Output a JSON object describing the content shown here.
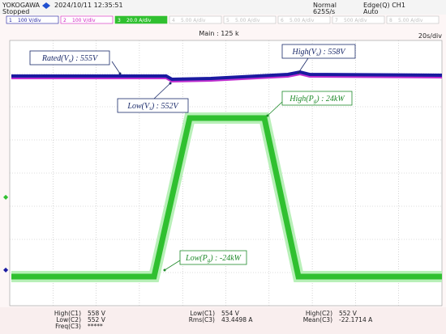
{
  "header": {
    "brand": "YOKOGAWA",
    "datetime": "2024/10/11 12:35:51",
    "status": "Stopped",
    "mode": "Normal",
    "rate": "625S/s",
    "trigger": "Edge(Q) CH1",
    "trigger_mode": "Auto"
  },
  "channels": [
    {
      "num": "1",
      "scale": "100 V/div",
      "color": "#1a1aa0"
    },
    {
      "num": "2",
      "scale": "100 V/div",
      "color": "#d020c0"
    },
    {
      "num": "3",
      "scale": "20.0 A/div",
      "color": "#30c030"
    },
    {
      "num": "4",
      "scale": "5.00 A/div",
      "color": "#c0c0c0"
    },
    {
      "num": "5",
      "scale": "5.00 A/div",
      "color": "#c0c0c0"
    },
    {
      "num": "6",
      "scale": "5.00 A/div",
      "color": "#c0c0c0"
    },
    {
      "num": "7",
      "scale": "500 A/div",
      "color": "#c0c0c0"
    },
    {
      "num": "8",
      "scale": "5.00 A/div",
      "color": "#c0c0c0"
    }
  ],
  "main": "Main : 125 k",
  "timebase": "20s/div",
  "annotations": [
    {
      "pre": "Rated(V",
      "sub": "s",
      "post": ") : 555V"
    },
    {
      "pre": "High(V",
      "sub": "s",
      "post": ") : 558V"
    },
    {
      "pre": "Low(V",
      "sub": "s",
      "post": ") : 552V"
    },
    {
      "pre": "High(P",
      "sub": "g",
      "post": ") : 24kW"
    },
    {
      "pre": "Low(P",
      "sub": "g",
      "post": ") : -24kW"
    }
  ],
  "measurements": [
    [
      "High(C1)",
      "558 V"
    ],
    [
      "Low(C1)",
      "554 V"
    ],
    [
      "High(C2)",
      "552 V"
    ],
    [
      "Low(C2)",
      "552 V"
    ],
    [
      "Rms(C3)",
      "43.4498 A"
    ],
    [
      "Mean(C3)",
      "-22.1714 A"
    ],
    [
      "Freq(C3)",
      "*****"
    ]
  ]
}
